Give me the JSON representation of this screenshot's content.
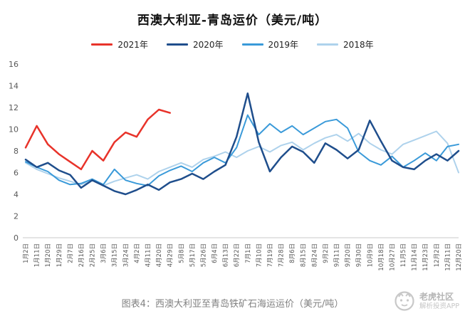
{
  "title": "西澳大利亚-青岛运价（美元/吨）",
  "legend": [
    {
      "label": "2021年",
      "color": "#e8332a"
    },
    {
      "label": "2020年",
      "color": "#1f4e8c"
    },
    {
      "label": "2019年",
      "color": "#3a9ad9"
    },
    {
      "label": "2018年",
      "color": "#aed2ec"
    }
  ],
  "axis": {
    "y_ticks": [
      0,
      2,
      4,
      6,
      8,
      10,
      12,
      14,
      16
    ]
  },
  "chart_data": {
    "type": "line",
    "title": "西澳大利亚-青岛运价（美元/吨）",
    "xlabel": "",
    "ylabel": "",
    "ylim": [
      0,
      16
    ],
    "grid": false,
    "legend_position": "top",
    "x": [
      "1月2日",
      "1月11日",
      "1月20日",
      "1月29日",
      "2月7日",
      "2月16日",
      "2月25日",
      "3月6日",
      "3月15日",
      "3月24日",
      "4月2日",
      "4月11日",
      "4月20日",
      "4月29日",
      "5月8日",
      "5月17日",
      "5月26日",
      "6月4日",
      "6月13日",
      "6月22日",
      "7月1日",
      "7月10日",
      "7月19日",
      "7月28日",
      "8月6日",
      "8月15日",
      "8月24日",
      "9月2日",
      "9月11日",
      "9月20日",
      "9月30日",
      "10月9日",
      "10月18日",
      "10月27日",
      "11月5日",
      "11月14日",
      "11月23日",
      "12月2日",
      "12月11日",
      "12月20日"
    ],
    "series": [
      {
        "name": "2021年",
        "color": "#e8332a",
        "values": [
          8.3,
          10.3,
          8.6,
          7.7,
          7.0,
          6.3,
          8.0,
          7.1,
          8.8,
          9.7,
          9.3,
          10.9,
          11.8,
          11.5
        ]
      },
      {
        "name": "2020年",
        "color": "#1f4e8c",
        "values": [
          7.2,
          6.5,
          6.9,
          6.2,
          5.8,
          4.6,
          5.3,
          4.8,
          4.3,
          4.0,
          4.4,
          4.9,
          4.4,
          5.1,
          5.4,
          5.9,
          5.4,
          6.1,
          6.7,
          9.3,
          13.3,
          8.8,
          6.1,
          7.4,
          8.4,
          7.9,
          6.9,
          8.7,
          8.1,
          7.3,
          8.1,
          10.8,
          8.9,
          7.1,
          6.5,
          6.3,
          7.1,
          7.7,
          7.1,
          8.0
        ]
      },
      {
        "name": "2019年",
        "color": "#3a9ad9",
        "values": [
          7.0,
          6.5,
          6.1,
          5.3,
          4.9,
          5.0,
          5.4,
          4.9,
          6.3,
          5.3,
          5.0,
          4.8,
          5.7,
          6.2,
          6.6,
          6.1,
          6.9,
          7.4,
          6.9,
          8.3,
          11.3,
          9.5,
          10.5,
          9.7,
          10.3,
          9.5,
          10.1,
          10.7,
          10.9,
          10.1,
          7.9,
          7.1,
          6.7,
          7.5,
          6.5,
          7.1,
          7.8,
          7.1,
          8.4,
          8.6
        ]
      },
      {
        "name": "2018年",
        "color": "#aed2ec",
        "values": [
          6.9,
          6.3,
          5.9,
          5.5,
          5.2,
          4.9,
          5.3,
          4.8,
          5.2,
          5.5,
          5.8,
          5.4,
          6.1,
          6.5,
          6.9,
          6.5,
          7.2,
          7.5,
          7.9,
          7.4,
          8.0,
          8.4,
          7.9,
          8.5,
          8.8,
          8.1,
          8.7,
          9.2,
          9.5,
          8.9,
          9.6,
          8.7,
          8.1,
          7.7,
          8.6,
          9.0,
          9.4,
          9.8,
          8.7,
          6.0
        ]
      }
    ]
  },
  "caption": "图表4：西澳大利亚至青岛铁矿石海运运价（美元/吨）",
  "watermark": {
    "line1": "老虎社区",
    "line2": "解析投资APP"
  }
}
